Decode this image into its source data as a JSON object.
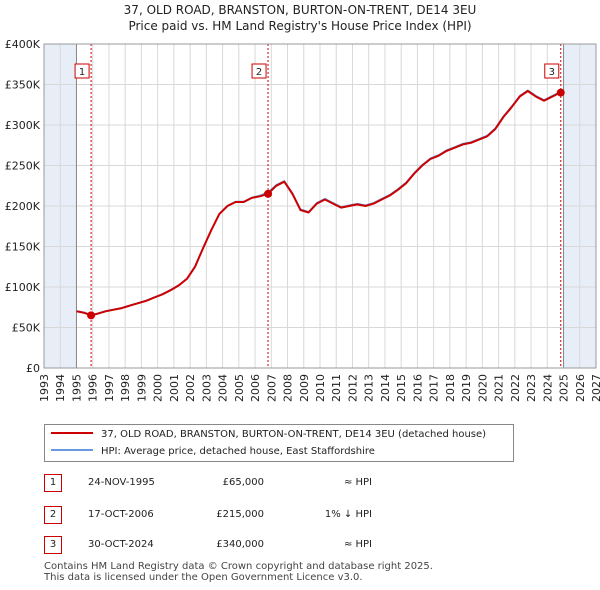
{
  "title": {
    "line1": "37, OLD ROAD, BRANSTON, BURTON-ON-TRENT, DE14 3EU",
    "line2": "Price paid vs. HM Land Registry's House Price Index (HPI)"
  },
  "colors": {
    "property": "#cc0000",
    "hpi": "#6699dd",
    "shade": "#e8eef8",
    "grid": "#d8d8d8",
    "marker": "#cc0000"
  },
  "legend": {
    "property_label": "37, OLD ROAD, BRANSTON, BURTON-ON-TRENT, DE14 3EU (detached house)",
    "hpi_label": "HPI: Average price, detached house, East Staffordshire"
  },
  "transactions": [
    {
      "num": "1",
      "date": "24-NOV-1995",
      "price": "£65,000",
      "hpi": "≈ HPI"
    },
    {
      "num": "2",
      "date": "17-OCT-2006",
      "price": "£215,000",
      "hpi": "1% ↓ HPI"
    },
    {
      "num": "3",
      "date": "30-OCT-2024",
      "price": "£340,000",
      "hpi": "≈ HPI"
    }
  ],
  "footer": {
    "line1": "Contains HM Land Registry data © Crown copyright and database right 2025.",
    "line2": "This data is licensed under the Open Government Licence v3.0."
  },
  "chart_data": {
    "type": "line",
    "title": "Price paid vs. HM Land Registry's House Price Index (HPI)",
    "xlabel": "",
    "ylabel": "",
    "xlim": [
      1993,
      2027
    ],
    "ylim": [
      0,
      400000
    ],
    "x_ticks": [
      "1993",
      "1994",
      "1995",
      "1996",
      "1997",
      "1998",
      "1999",
      "2000",
      "2001",
      "2002",
      "2003",
      "2004",
      "2005",
      "2006",
      "2007",
      "2008",
      "2009",
      "2010",
      "2011",
      "2012",
      "2013",
      "2014",
      "2015",
      "2016",
      "2017",
      "2018",
      "2019",
      "2020",
      "2021",
      "2022",
      "2023",
      "2024",
      "2025",
      "2026",
      "2027"
    ],
    "y_ticks": [
      {
        "value": 0,
        "label": "£0"
      },
      {
        "value": 50000,
        "label": "£50K"
      },
      {
        "value": 100000,
        "label": "£100K"
      },
      {
        "value": 150000,
        "label": "£150K"
      },
      {
        "value": 200000,
        "label": "£200K"
      },
      {
        "value": 250000,
        "label": "£250K"
      },
      {
        "value": 300000,
        "label": "£300K"
      },
      {
        "value": 350000,
        "label": "£350K"
      },
      {
        "value": 400000,
        "label": "£400K"
      }
    ],
    "shaded_ranges": [
      [
        1993,
        1995.0
      ],
      [
        2025.0,
        2027
      ]
    ],
    "series": [
      {
        "name": "37, OLD ROAD, BRANSTON, BURTON-ON-TRENT, DE14 3EU (detached house)",
        "x": [
          1995.0,
          1995.5,
          1995.9,
          1996.3,
          1996.8,
          1997.3,
          1997.8,
          1998.3,
          1998.8,
          1999.3,
          1999.8,
          2000.3,
          2000.8,
          2001.3,
          2001.8,
          2002.3,
          2002.8,
          2003.3,
          2003.8,
          2004.3,
          2004.8,
          2005.3,
          2005.8,
          2006.3,
          2006.8,
          2007.3,
          2007.8,
          2008.3,
          2008.8,
          2009.3,
          2009.8,
          2010.3,
          2010.8,
          2011.3,
          2011.8,
          2012.3,
          2012.8,
          2013.3,
          2013.8,
          2014.3,
          2014.8,
          2015.3,
          2015.8,
          2016.3,
          2016.8,
          2017.3,
          2017.8,
          2018.3,
          2018.8,
          2019.3,
          2019.8,
          2020.3,
          2020.8,
          2021.3,
          2021.8,
          2022.3,
          2022.8,
          2023.3,
          2023.8,
          2024.3,
          2024.8
        ],
        "y": [
          70000,
          68000,
          65000,
          67000,
          70000,
          72000,
          74000,
          77000,
          80000,
          83000,
          87000,
          91000,
          96000,
          102000,
          110000,
          125000,
          148000,
          170000,
          190000,
          200000,
          205000,
          205000,
          210000,
          212000,
          215000,
          225000,
          230000,
          215000,
          195000,
          192000,
          203000,
          208000,
          203000,
          198000,
          200000,
          202000,
          200000,
          203000,
          208000,
          213000,
          220000,
          228000,
          240000,
          250000,
          258000,
          262000,
          268000,
          272000,
          276000,
          278000,
          282000,
          286000,
          295000,
          310000,
          322000,
          335000,
          342000,
          335000,
          330000,
          335000,
          340000
        ]
      },
      {
        "name": "HPI: Average price, detached house, East Staffordshire",
        "x": [
          1995.0,
          1995.5,
          1995.9,
          1996.3,
          1996.8,
          1997.3,
          1997.8,
          1998.3,
          1998.8,
          1999.3,
          1999.8,
          2000.3,
          2000.8,
          2001.3,
          2001.8,
          2002.3,
          2002.8,
          2003.3,
          2003.8,
          2004.3,
          2004.8,
          2005.3,
          2005.8,
          2006.3,
          2006.8,
          2007.3,
          2007.8,
          2008.3,
          2008.8,
          2009.3,
          2009.8,
          2010.3,
          2010.8,
          2011.3,
          2011.8,
          2012.3,
          2012.8,
          2013.3,
          2013.8,
          2014.3,
          2014.8,
          2015.3,
          2015.8,
          2016.3,
          2016.8,
          2017.3,
          2017.8,
          2018.3,
          2018.8,
          2019.3,
          2019.8,
          2020.3,
          2020.8,
          2021.3,
          2021.8,
          2022.3,
          2022.8,
          2023.3,
          2023.8,
          2024.3,
          2024.8
        ],
        "y": [
          70500,
          68500,
          65500,
          67500,
          70500,
          72500,
          74500,
          77500,
          80500,
          83500,
          87500,
          91500,
          96500,
          102500,
          110500,
          125500,
          148500,
          170500,
          190500,
          200500,
          205500,
          205500,
          210500,
          213000,
          217000,
          226000,
          231000,
          216000,
          196000,
          193000,
          204000,
          209000,
          204000,
          199000,
          201000,
          203000,
          201000,
          204000,
          209000,
          214000,
          221000,
          229000,
          241000,
          251000,
          259000,
          263000,
          269000,
          273000,
          277000,
          279000,
          283000,
          287000,
          296000,
          311000,
          323000,
          336000,
          343000,
          336000,
          331000,
          336000,
          341000
        ]
      }
    ],
    "annotations": [
      {
        "label": "1",
        "x": 1995.9,
        "price": 65000
      },
      {
        "label": "2",
        "x": 2006.8,
        "price": 215000
      },
      {
        "label": "3",
        "x": 2024.83,
        "price": 340000
      }
    ]
  }
}
